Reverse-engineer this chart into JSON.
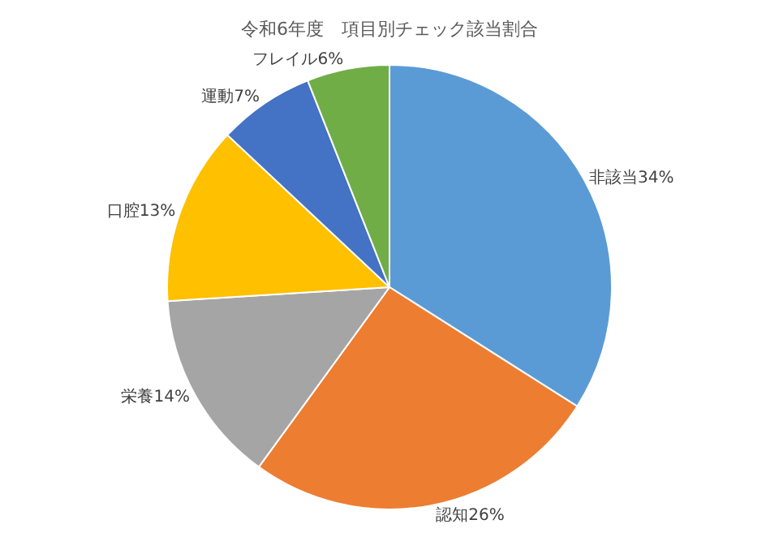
{
  "chart_data": {
    "type": "pie",
    "title": "令和6年度　項目別チェック該当割合",
    "categories": [
      "非該当",
      "認知",
      "栄養",
      "口腔",
      "運動",
      "フレイル"
    ],
    "values": [
      34,
      26,
      14,
      13,
      7,
      6
    ],
    "value_labels": [
      "34%",
      "26%",
      "14%",
      "13%",
      "7%",
      "6%"
    ],
    "colors": [
      "#5b9bd5",
      "#ed7d31",
      "#a5a5a5",
      "#ffc000",
      "#4472c4",
      "#70ad47"
    ],
    "legend": false
  }
}
